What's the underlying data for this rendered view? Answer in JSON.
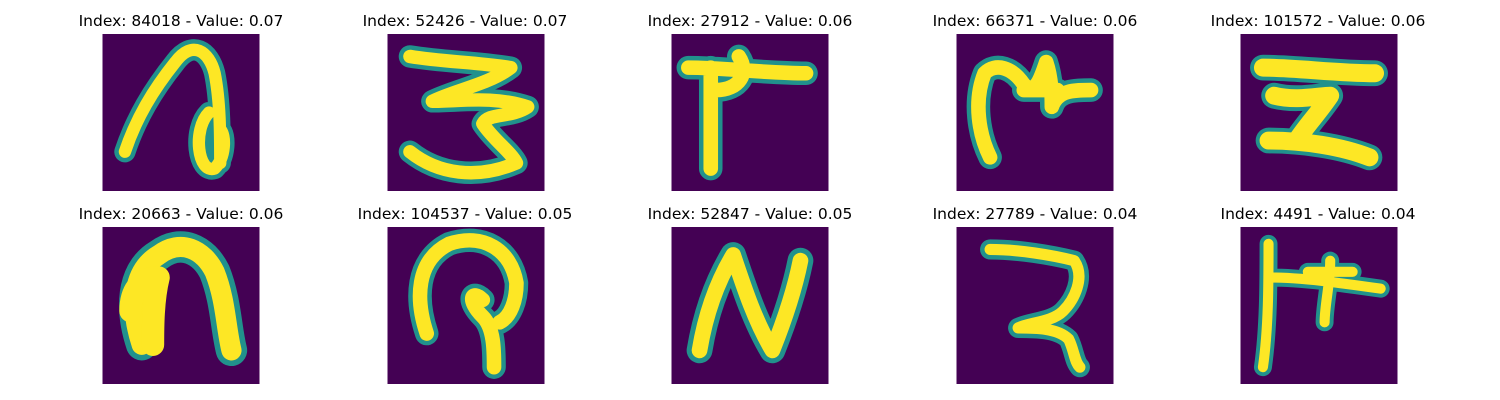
{
  "colors": {
    "background": "#440154",
    "stroke_mid": "#21918c",
    "stroke_core": "#fde725"
  },
  "panels": [
    {
      "title": "Index: 84018 - Value: 0.07"
    },
    {
      "title": "Index: 52426 - Value: 0.07"
    },
    {
      "title": "Index: 27912 - Value: 0.06"
    },
    {
      "title": "Index: 66371 - Value: 0.06"
    },
    {
      "title": "Index: 101572 - Value: 0.06"
    },
    {
      "title": "Index: 20663 - Value: 0.06"
    },
    {
      "title": "Index: 104537 - Value: 0.05"
    },
    {
      "title": "Index: 52847 - Value: 0.05"
    },
    {
      "title": "Index: 27789 - Value: 0.04"
    },
    {
      "title": "Index: 4491 - Value: 0.04"
    }
  ]
}
